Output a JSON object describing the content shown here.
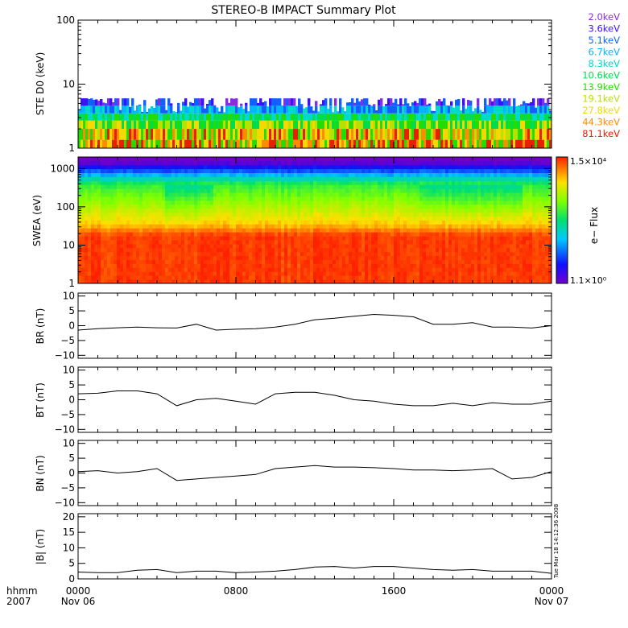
{
  "title": "STEREO-B IMPACT Summary Plot",
  "timestamp": "Tue Mar 18 14:12:36 2008",
  "chart_data": [
    {
      "type": "bar",
      "id": "ste",
      "ylabel": "STE D0 (keV)",
      "yscale": "log",
      "ylim": [
        1,
        100
      ],
      "yticks": [
        {
          "v": 1,
          "label": "1"
        },
        {
          "v": 10,
          "label": "10"
        },
        {
          "v": 100,
          "label": "100"
        }
      ],
      "channels": [
        {
          "label": "2.0keV",
          "color": "#8a2be2"
        },
        {
          "label": "3.6keV",
          "color": "#3a10ff"
        },
        {
          "label": "5.1keV",
          "color": "#1060ff"
        },
        {
          "label": "6.7keV",
          "color": "#00b4ff"
        },
        {
          "label": "8.3keV",
          "color": "#00d8c8"
        },
        {
          "label": "10.6keV",
          "color": "#00dc50"
        },
        {
          "label": "13.9keV",
          "color": "#22dd00"
        },
        {
          "label": "19.1keV",
          "color": "#b8e000"
        },
        {
          "label": "27.8keV",
          "color": "#f5d800"
        },
        {
          "label": "44.3keV",
          "color": "#ff8c00"
        },
        {
          "label": "81.1keV",
          "color": "#e62000"
        }
      ]
    },
    {
      "type": "heatmap",
      "id": "swea",
      "ylabel": "SWEA (eV)",
      "yscale": "log",
      "ylim": [
        1,
        2000
      ],
      "yticks": [
        {
          "v": 1,
          "label": "1"
        },
        {
          "v": 10,
          "label": "10"
        },
        {
          "v": 100,
          "label": "100"
        },
        {
          "v": 1000,
          "label": "1000"
        }
      ],
      "colorbar": {
        "label": "e− Flux",
        "max_label": "1.5×10⁴",
        "min_label": "1.1×10⁰"
      }
    },
    {
      "type": "line",
      "id": "br",
      "ylabel": "BR (nT)",
      "ylim": [
        -11,
        11
      ],
      "yticks": [
        {
          "v": 10,
          "label": "10"
        },
        {
          "v": 5,
          "label": "5"
        },
        {
          "v": 0,
          "label": "0"
        },
        {
          "v": -5,
          "label": "−5"
        },
        {
          "v": -10,
          "label": "−10"
        }
      ],
      "series": [
        {
          "x": [
            0,
            1,
            2,
            3,
            4,
            5,
            6,
            7,
            8,
            9,
            10,
            11,
            12,
            13,
            14,
            15,
            16,
            17,
            18,
            19,
            20,
            21,
            22,
            23,
            24
          ],
          "y": [
            -1.5,
            -1,
            -0.7,
            -0.5,
            -0.7,
            -0.8,
            0.5,
            -1.5,
            -1.2,
            -1,
            -0.5,
            0.5,
            2,
            2.5,
            3.2,
            3.8,
            3.5,
            3,
            0.5,
            0.5,
            1,
            -0.5,
            -0.5,
            -0.8,
            0
          ]
        }
      ]
    },
    {
      "type": "line",
      "id": "bt",
      "ylabel": "BT (nT)",
      "ylim": [
        -11,
        11
      ],
      "yticks": [
        {
          "v": 10,
          "label": "10"
        },
        {
          "v": 5,
          "label": "5"
        },
        {
          "v": 0,
          "label": "0"
        },
        {
          "v": -5,
          "label": "−5"
        },
        {
          "v": -10,
          "label": "−10"
        }
      ],
      "series": [
        {
          "x": [
            0,
            1,
            2,
            3,
            4,
            5,
            6,
            7,
            8,
            9,
            10,
            11,
            12,
            13,
            14,
            15,
            16,
            17,
            18,
            19,
            20,
            21,
            22,
            23,
            24
          ],
          "y": [
            2,
            2.2,
            3,
            3,
            2,
            -2,
            0,
            0.5,
            -0.5,
            -1.5,
            2,
            2.5,
            2.5,
            1.5,
            0,
            -0.5,
            -1.5,
            -2,
            -2,
            -1.2,
            -2,
            -1,
            -1.5,
            -1.5,
            -0.5
          ]
        }
      ]
    },
    {
      "type": "line",
      "id": "bn",
      "ylabel": "BN (nT)",
      "ylim": [
        -11,
        11
      ],
      "yticks": [
        {
          "v": 10,
          "label": "10"
        },
        {
          "v": 5,
          "label": "5"
        },
        {
          "v": 0,
          "label": "0"
        },
        {
          "v": -5,
          "label": "−5"
        },
        {
          "v": -10,
          "label": "−10"
        }
      ],
      "series": [
        {
          "x": [
            0,
            1,
            2,
            3,
            4,
            5,
            6,
            7,
            8,
            9,
            10,
            11,
            12,
            13,
            14,
            15,
            16,
            17,
            18,
            19,
            20,
            21,
            22,
            23,
            24
          ],
          "y": [
            0.5,
            0.8,
            0,
            0.5,
            1.5,
            -2.5,
            -2,
            -1.5,
            -1,
            -0.5,
            1.5,
            2,
            2.5,
            2,
            2,
            1.8,
            1.5,
            1,
            1,
            0.8,
            1,
            1.5,
            -2,
            -1.5,
            0.5
          ]
        }
      ]
    },
    {
      "type": "line",
      "id": "bmag",
      "ylabel": "|B| (nT)",
      "ylim": [
        0,
        21
      ],
      "yticks": [
        {
          "v": 20,
          "label": "20"
        },
        {
          "v": 15,
          "label": "15"
        },
        {
          "v": 10,
          "label": "10"
        },
        {
          "v": 5,
          "label": "5"
        },
        {
          "v": 0,
          "label": "0"
        }
      ],
      "series": [
        {
          "x": [
            0,
            1,
            2,
            3,
            4,
            5,
            6,
            7,
            8,
            9,
            10,
            11,
            12,
            13,
            14,
            15,
            16,
            17,
            18,
            19,
            20,
            21,
            22,
            23,
            24
          ],
          "y": [
            2.2,
            2,
            2,
            2.8,
            3,
            2,
            2.5,
            2.5,
            2,
            2.2,
            2.5,
            3,
            3.8,
            4,
            3.5,
            4,
            4,
            3.5,
            3,
            2.8,
            3,
            2.5,
            2.5,
            2.5,
            1.8
          ]
        }
      ]
    }
  ],
  "xaxis": {
    "xlim": [
      0,
      24
    ],
    "ticks": [
      {
        "v": 0,
        "label": "0000",
        "sub": "Nov 06"
      },
      {
        "v": 8,
        "label": "0800",
        "sub": ""
      },
      {
        "v": 16,
        "label": "1600",
        "sub": ""
      },
      {
        "v": 24,
        "label": "0000",
        "sub": "Nov 07"
      }
    ],
    "label_top": "hhmm",
    "label_bottom": "2007"
  }
}
